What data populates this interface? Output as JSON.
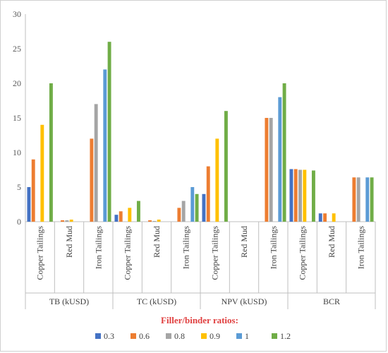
{
  "chart_data": {
    "type": "bar",
    "title": "",
    "xlabel": "",
    "ylabel": "",
    "ylim": [
      0,
      30
    ],
    "y_ticks": [
      "0",
      "5",
      "10",
      "15",
      "20",
      "25",
      "30"
    ],
    "grid": false,
    "legend_placement": "bottom",
    "legend_title": "Filler/binder ratios:",
    "groups": [
      {
        "name": "TB (kUSD)",
        "categories": [
          "Copper Tailings",
          "Red Mud",
          "Iron Tailings"
        ]
      },
      {
        "name": "TC (kUSD)",
        "categories": [
          "Copper Tailings",
          "Red Mud",
          "Iron Tailings"
        ]
      },
      {
        "name": "NPV (kUSD)",
        "categories": [
          "Copper Tailings",
          "Red Mud",
          "Iron Tailings"
        ]
      },
      {
        "name": "BCR",
        "categories": [
          "Copper Tailings",
          "Red Mud",
          "Iron Tailings"
        ]
      }
    ],
    "series": [
      {
        "name": "0.3",
        "color": "#4472c4",
        "values": [
          5,
          0,
          0,
          1,
          0,
          0,
          4,
          0,
          0,
          7.6,
          1.2,
          0
        ]
      },
      {
        "name": "0.6",
        "color": "#ed7d31",
        "values": [
          9,
          0.2,
          12,
          1.5,
          0.2,
          2,
          8,
          0,
          15,
          7.6,
          1.2,
          6.4
        ]
      },
      {
        "name": "0.8",
        "color": "#a5a5a5",
        "values": [
          0,
          0.2,
          17,
          0,
          0.1,
          3,
          0,
          0,
          15,
          7.5,
          0,
          6.4
        ]
      },
      {
        "name": "0.9",
        "color": "#ffc000",
        "values": [
          14,
          0.3,
          0,
          2,
          0.3,
          0,
          12,
          0,
          0,
          7.5,
          1.2,
          0
        ]
      },
      {
        "name": "1",
        "color": "#5b9bd5",
        "values": [
          0,
          0,
          22,
          0,
          0,
          5,
          0,
          0,
          18,
          0,
          0,
          6.4
        ]
      },
      {
        "name": "1.2",
        "color": "#70ad47",
        "values": [
          20,
          0,
          26,
          3,
          0,
          4,
          16,
          0,
          20,
          7.4,
          0,
          6.4
        ]
      }
    ]
  }
}
